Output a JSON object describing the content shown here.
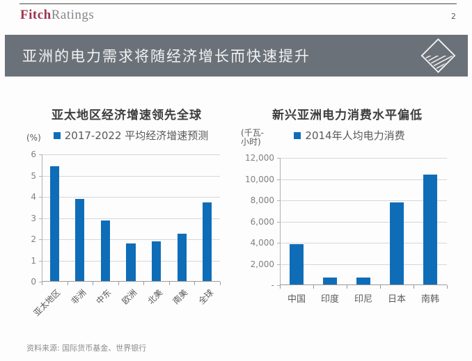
{
  "header": {
    "logo_fitch": "Fitch",
    "logo_ratings": "Ratings",
    "page_number": "2"
  },
  "title_bar": {
    "title": "亚洲的电力需求将随经济增长而快速提升",
    "bg_color": "#6b7178",
    "icon": "diamond-hatch-icon"
  },
  "footer": {
    "source": "资料来源: 国际货币基金、世界银行"
  },
  "colors": {
    "bar_blue": "#0f6db8",
    "header_gray": "#6b7178",
    "fitch_red": "#9e3450"
  },
  "chart_data": [
    {
      "type": "bar",
      "title": "亚太地区经济增速领先全球",
      "legend": "2017-2022 平均经济增速预测",
      "unit_lines": [
        "(%)"
      ],
      "categories": [
        "亚太地区",
        "非洲",
        "中东",
        "欧洲",
        "北美",
        "南美",
        "全球"
      ],
      "values": [
        5.45,
        3.9,
        2.9,
        1.8,
        1.9,
        2.25,
        3.75
      ],
      "ylim": [
        0,
        6
      ],
      "yticks": [
        0,
        1,
        2,
        3,
        4,
        5,
        6
      ],
      "ytick_labels": [
        "0",
        "1",
        "2",
        "3",
        "4",
        "5",
        "6"
      ],
      "grid": true,
      "legend_position": "top",
      "rotate_labels": true,
      "bar_width_frac": 0.36,
      "bar_color": "#0f6db8"
    },
    {
      "type": "bar",
      "title": "新兴亚洲电力消费水平偏低",
      "legend": "2014年人均电力消费",
      "unit_lines": [
        "(千瓦-",
        "小时)"
      ],
      "categories": [
        "中国",
        "印度",
        "印尼",
        "日本",
        "南韩"
      ],
      "values": [
        3900,
        750,
        750,
        7800,
        10450
      ],
      "ylim": [
        0,
        12000
      ],
      "yticks": [
        0,
        2000,
        4000,
        6000,
        8000,
        10000,
        12000
      ],
      "ytick_labels": [
        "-",
        "2,000",
        "4,000",
        "6,000",
        "8,000",
        "10,000",
        "12,000"
      ],
      "grid": true,
      "legend_position": "top",
      "rotate_labels": false,
      "bar_width_frac": 0.4,
      "bar_color": "#0f6db8"
    }
  ]
}
